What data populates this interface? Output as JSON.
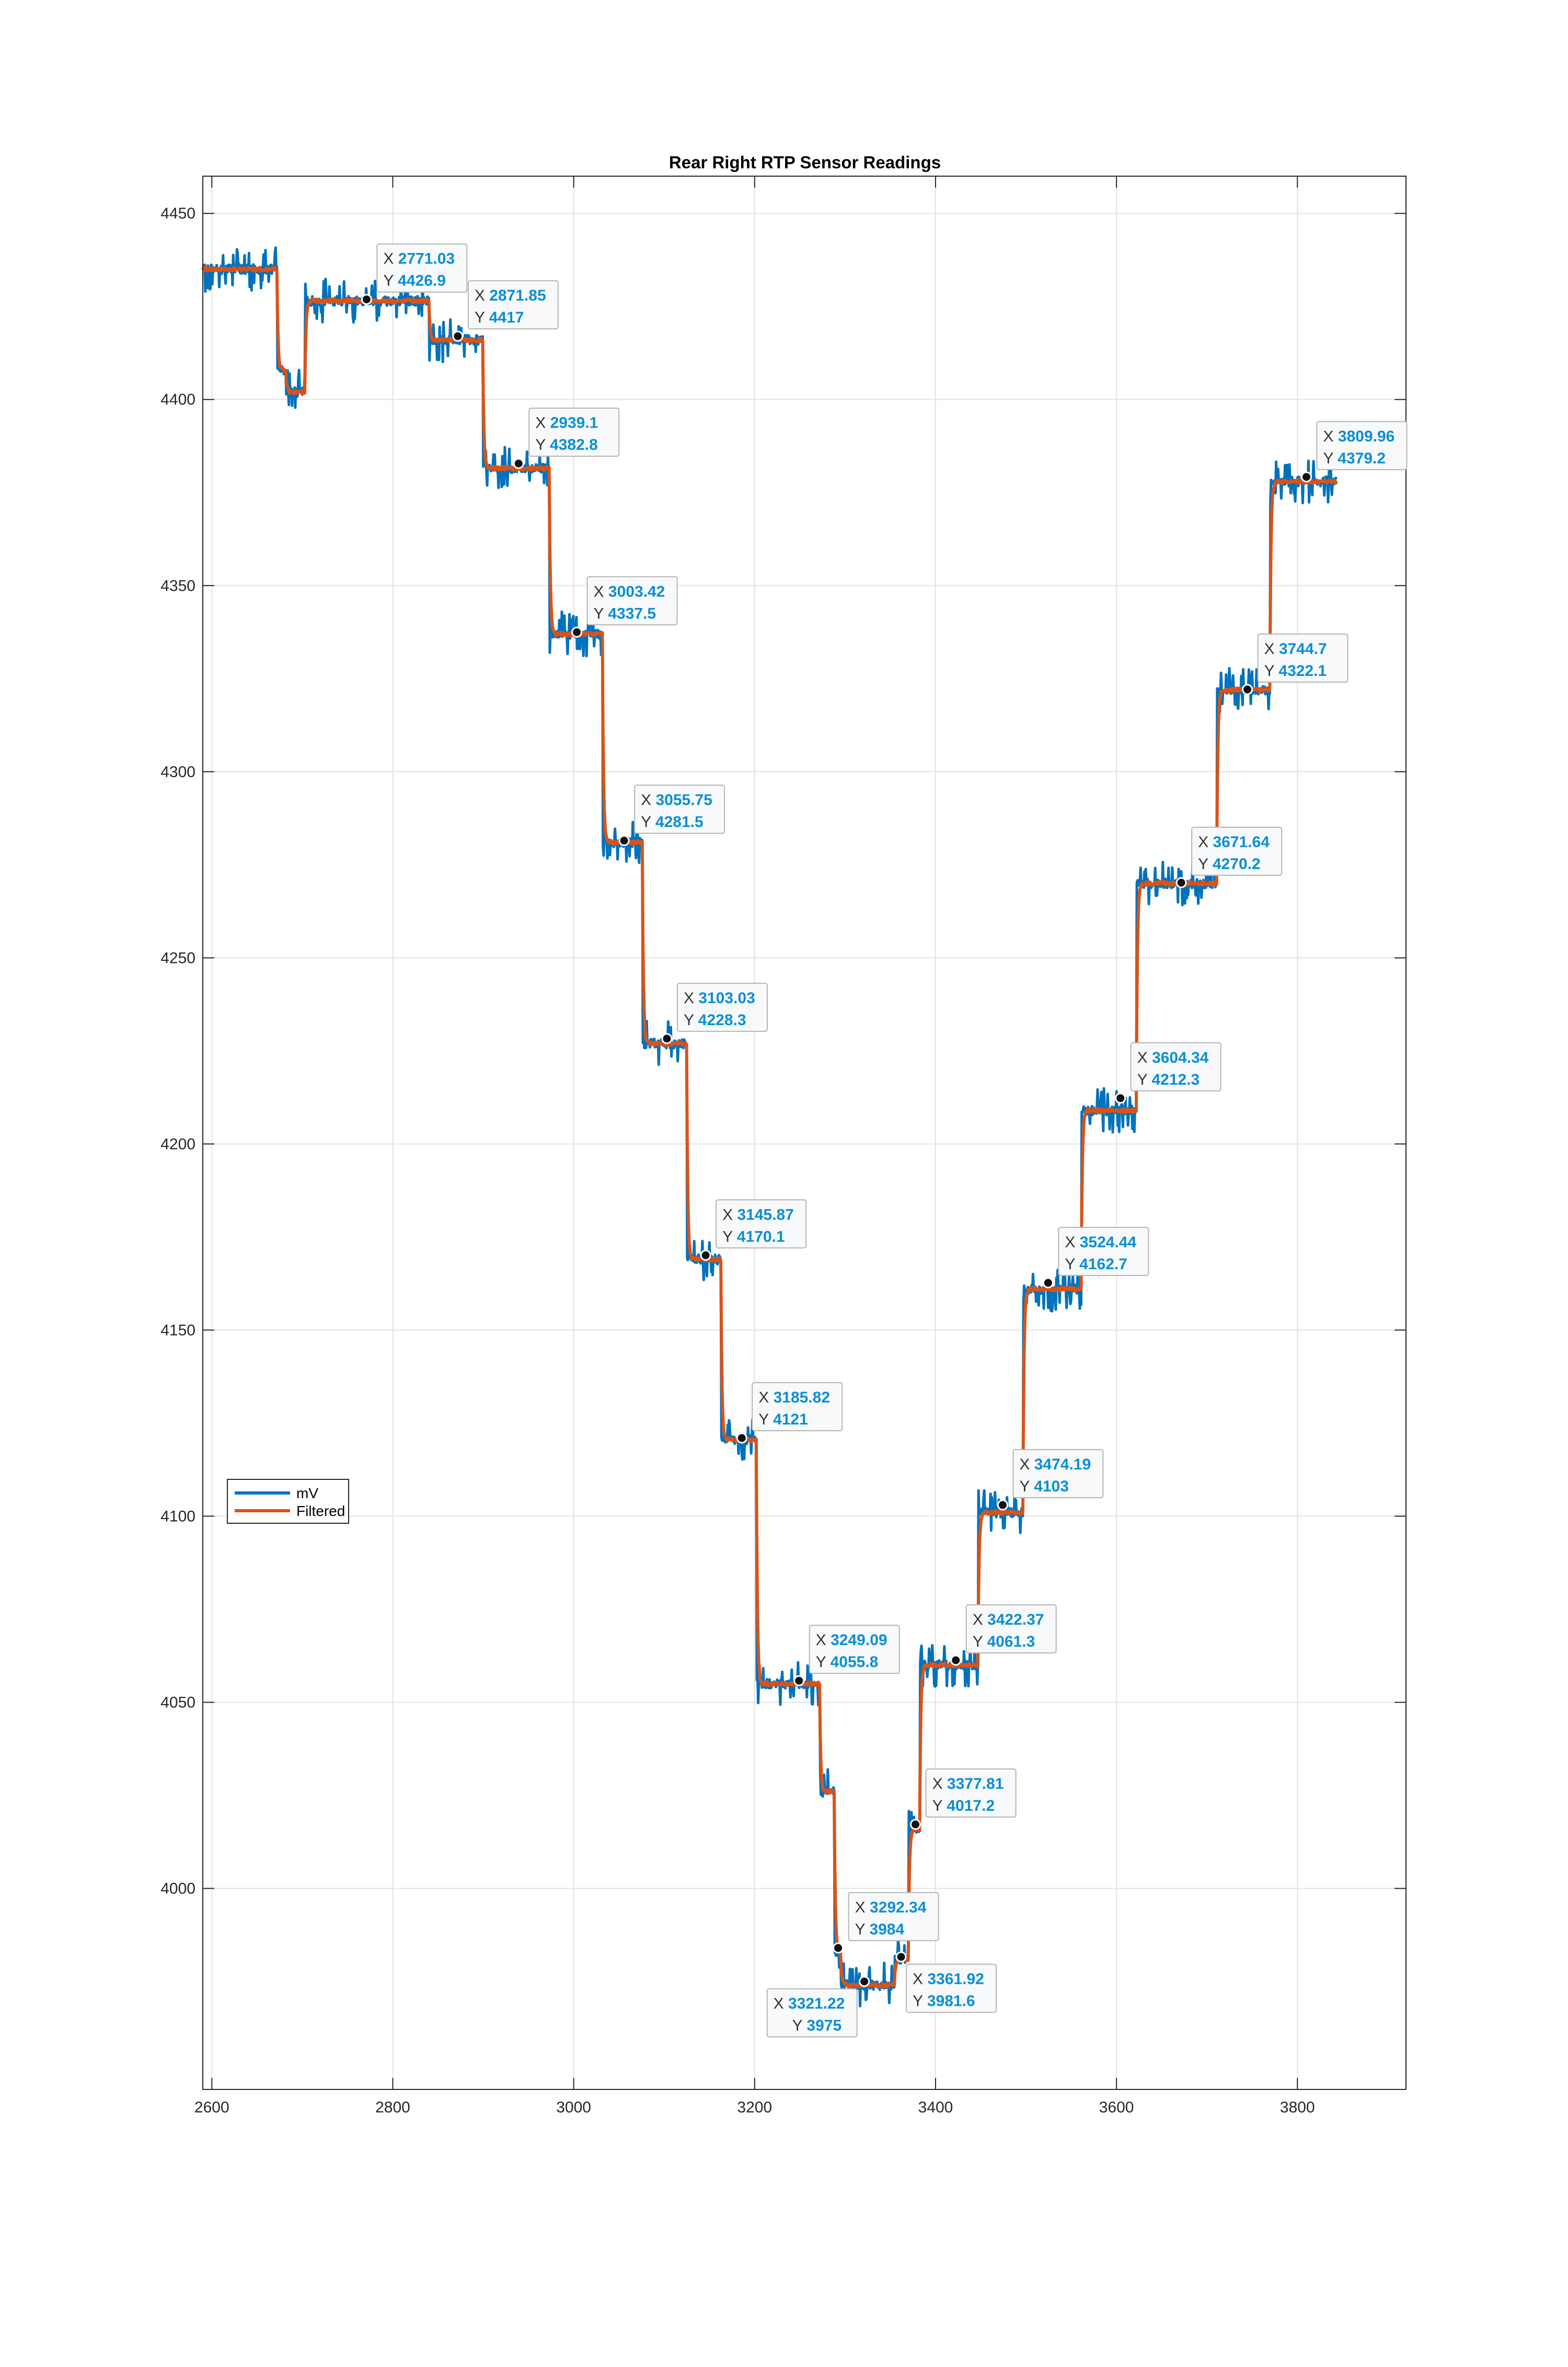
{
  "chart_data": {
    "type": "line",
    "title": "Rear Right RTP Sensor Readings",
    "xlabel": "",
    "ylabel": "",
    "xlim": [
      2590,
      3920
    ],
    "ylim": [
      3946,
      4460
    ],
    "x_ticks": [
      2600,
      2800,
      3000,
      3200,
      3400,
      3600,
      3800
    ],
    "y_ticks": [
      4000,
      4050,
      4100,
      4150,
      4200,
      4250,
      4300,
      4350,
      4400,
      4450
    ],
    "grid": true,
    "legend": {
      "location": "middle-left",
      "entries": [
        "mV",
        "Filtered"
      ]
    },
    "colors": {
      "mV": "#0072bd",
      "Filtered": "#d95319",
      "datatip_value": "#0a8fd4"
    },
    "steps": [
      {
        "x_start": 2590,
        "x_end": 2672,
        "y": 4435
      },
      {
        "x_start": 2672,
        "x_end": 2682,
        "y": 4408
      },
      {
        "x_start": 2682,
        "x_end": 2703,
        "y": 4402
      },
      {
        "x_start": 2703,
        "x_end": 2840,
        "y": 4426.5
      },
      {
        "x_start": 2840,
        "x_end": 2900,
        "y": 4416
      },
      {
        "x_start": 2900,
        "x_end": 2973,
        "y": 4381.5
      },
      {
        "x_start": 2973,
        "x_end": 3032,
        "y": 4337
      },
      {
        "x_start": 3032,
        "x_end": 3076,
        "y": 4281
      },
      {
        "x_start": 3076,
        "x_end": 3125,
        "y": 4227
      },
      {
        "x_start": 3125,
        "x_end": 3163,
        "y": 4169
      },
      {
        "x_start": 3163,
        "x_end": 3202,
        "y": 4120.5
      },
      {
        "x_start": 3202,
        "x_end": 3272,
        "y": 4055
      },
      {
        "x_start": 3272,
        "x_end": 3288,
        "y": 4026
      },
      {
        "x_start": 3288,
        "x_end": 3295,
        "y": 3983
      },
      {
        "x_start": 3295,
        "x_end": 3355,
        "y": 3974
      },
      {
        "x_start": 3355,
        "x_end": 3370,
        "y": 3981
      },
      {
        "x_start": 3370,
        "x_end": 3383,
        "y": 4016
      },
      {
        "x_start": 3383,
        "x_end": 3447,
        "y": 4060
      },
      {
        "x_start": 3447,
        "x_end": 3497,
        "y": 4101
      },
      {
        "x_start": 3497,
        "x_end": 3561,
        "y": 4161
      },
      {
        "x_start": 3561,
        "x_end": 3622,
        "y": 4209
      },
      {
        "x_start": 3622,
        "x_end": 3711,
        "y": 4270
      },
      {
        "x_start": 3711,
        "x_end": 3770,
        "y": 4322
      },
      {
        "x_start": 3770,
        "x_end": 3843,
        "y": 4378
      }
    ],
    "datatips": [
      {
        "x": "2771.03",
        "y": "4426.9"
      },
      {
        "x": "2871.85",
        "y": "4417"
      },
      {
        "x": "2939.1",
        "y": "4382.8"
      },
      {
        "x": "3003.42",
        "y": "4337.5"
      },
      {
        "x": "3055.75",
        "y": "4281.5"
      },
      {
        "x": "3103.03",
        "y": "4228.3"
      },
      {
        "x": "3145.87",
        "y": "4170.1"
      },
      {
        "x": "3185.82",
        "y": "4121"
      },
      {
        "x": "3249.09",
        "y": "4055.8"
      },
      {
        "x": "3292.34",
        "y": "3984"
      },
      {
        "x": "3321.22",
        "y": "3975",
        "placement": "below-left"
      },
      {
        "x": "3361.92",
        "y": "3981.6",
        "placement": "below-right"
      },
      {
        "x": "3377.81",
        "y": "4017.2"
      },
      {
        "x": "3422.37",
        "y": "4061.3"
      },
      {
        "x": "3474.19",
        "y": "4103"
      },
      {
        "x": "3524.44",
        "y": "4162.7"
      },
      {
        "x": "3604.34",
        "y": "4212.3"
      },
      {
        "x": "3671.64",
        "y": "4270.2"
      },
      {
        "x": "3744.7",
        "y": "4322.1"
      },
      {
        "x": "3809.96",
        "y": "4379.2"
      }
    ]
  }
}
